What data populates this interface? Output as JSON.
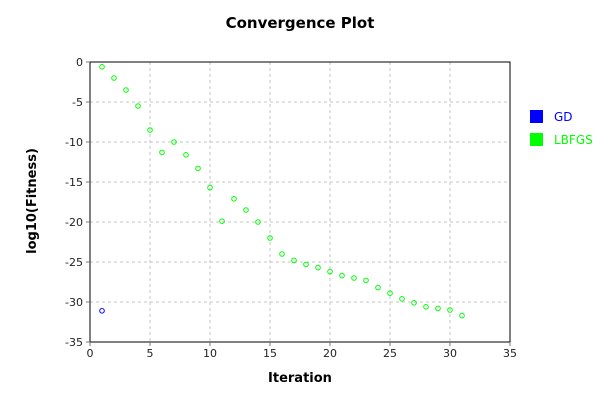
{
  "chart_data": {
    "type": "scatter",
    "title": "Convergence Plot",
    "xlabel": "Iteration",
    "ylabel": "log10(Fitness)",
    "xlim": [
      0,
      35
    ],
    "ylim": [
      -35,
      0
    ],
    "xticks": [
      0,
      5,
      10,
      15,
      20,
      25,
      30,
      35
    ],
    "yticks": [
      0,
      -5,
      -10,
      -15,
      -20,
      -25,
      -30,
      -35
    ],
    "xtick_labels": [
      "0",
      "5",
      "10",
      "15",
      "20",
      "25",
      "30",
      "35"
    ],
    "ytick_labels": [
      "0",
      "-5",
      "-10",
      "-15",
      "-20",
      "-25",
      "-30",
      "-35"
    ],
    "grid": true,
    "legend_position": "right",
    "marker": "hollow-circle",
    "series": [
      {
        "name": "GD",
        "color": "#0000ff",
        "points": [
          [
            1,
            -31.1
          ]
        ]
      },
      {
        "name": "LBFGS",
        "color": "#00ff00",
        "points": [
          [
            1,
            -0.6
          ],
          [
            2,
            -2.0
          ],
          [
            3,
            -3.5
          ],
          [
            4,
            -5.5
          ],
          [
            5,
            -8.5
          ],
          [
            6,
            -11.3
          ],
          [
            7,
            -10.0
          ],
          [
            8,
            -11.6
          ],
          [
            9,
            -13.3
          ],
          [
            10,
            -15.7
          ],
          [
            11,
            -19.9
          ],
          [
            12,
            -17.1
          ],
          [
            13,
            -18.5
          ],
          [
            14,
            -20.0
          ],
          [
            15,
            -22.0
          ],
          [
            16,
            -24.0
          ],
          [
            17,
            -24.8
          ],
          [
            18,
            -25.3
          ],
          [
            19,
            -25.7
          ],
          [
            20,
            -26.2
          ],
          [
            21,
            -26.7
          ],
          [
            22,
            -27.0
          ],
          [
            23,
            -27.3
          ],
          [
            24,
            -28.2
          ],
          [
            25,
            -28.9
          ],
          [
            26,
            -29.6
          ],
          [
            27,
            -30.1
          ],
          [
            28,
            -30.6
          ],
          [
            29,
            -30.8
          ],
          [
            30,
            -31.0
          ],
          [
            31,
            -31.7
          ]
        ]
      }
    ]
  }
}
